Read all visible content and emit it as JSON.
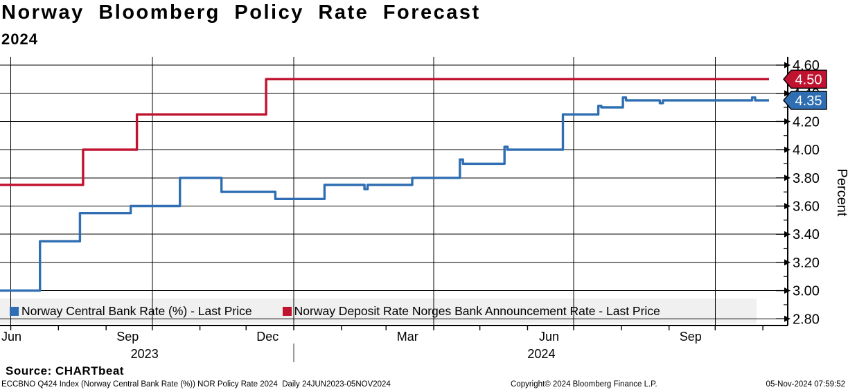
{
  "title": "Norway Bloomberg Policy Rate Forecast",
  "subtitle": "2024",
  "source_label": "Source: CHARTbeat",
  "footer": {
    "left": "ECCBNO Q424 Index (Norway Central Bank Rate (%)) NOR Policy Rate 2024  Daily 24JUN2023-05NOV2024",
    "center": "Copyright© 2024 Bloomberg Finance L.P.",
    "right": "05-Nov-2024 07:59:52"
  },
  "chart_data": {
    "type": "line",
    "line_style": "step-after",
    "title": "Norway Bloomberg Policy Rate Forecast 2024",
    "ylabel": "Percent",
    "ylim": [
      2.76,
      4.66
    ],
    "ytick_values": [
      2.8,
      3.0,
      3.2,
      3.4,
      3.6,
      3.8,
      4.0,
      4.2,
      4.4,
      4.6
    ],
    "ytick_labels": [
      "2.80",
      "3.00",
      "3.20",
      "3.40",
      "3.60",
      "3.80",
      "4.00",
      "4.20",
      "4.40",
      "4.60"
    ],
    "ytick_minor_values": [
      2.9,
      3.1,
      3.3,
      3.5,
      3.7,
      3.9,
      4.1,
      4.3,
      4.5
    ],
    "x_range": [
      "2023-06-24",
      "2024-11-05"
    ],
    "grid": true,
    "grid_vertical_dates": [
      "2023-07-01",
      "2023-10-01",
      "2024-01-01",
      "2024-04-01",
      "2024-07-01",
      "2024-10-01"
    ],
    "x_month_ticks": [
      "2023-07-01",
      "2023-08-01",
      "2023-09-01",
      "2023-10-01",
      "2023-11-01",
      "2023-12-01",
      "2024-01-01",
      "2024-02-01",
      "2024-03-01",
      "2024-04-01",
      "2024-05-01",
      "2024-06-01",
      "2024-07-01",
      "2024-08-01",
      "2024-09-01",
      "2024-10-01",
      "2024-11-01"
    ],
    "x_month_labels": [
      {
        "label": "Jun",
        "date": "2023-06-15"
      },
      {
        "label": "Sep",
        "date": "2023-09-15"
      },
      {
        "label": "Dec",
        "date": "2023-12-15"
      },
      {
        "label": "Mar",
        "date": "2024-03-15"
      },
      {
        "label": "Jun",
        "date": "2024-06-15"
      },
      {
        "label": "Sep",
        "date": "2024-09-15"
      }
    ],
    "x_year_labels": [
      {
        "label": "2023",
        "date": "2023-09-26"
      },
      {
        "label": "2024",
        "date": "2024-06-10"
      }
    ],
    "year_separator_date": "2024-01-01",
    "legend_position": "bottom-band",
    "series": [
      {
        "name": "Norway Central Bank Rate (%) - Last Price",
        "color": "#2f6eb2",
        "last_price": 4.35,
        "last_price_label": "4.35",
        "points": [
          [
            "2023-06-24",
            3.0
          ],
          [
            "2023-07-20",
            3.35
          ],
          [
            "2023-08-15",
            3.55
          ],
          [
            "2023-09-17",
            3.6
          ],
          [
            "2023-10-19",
            3.8
          ],
          [
            "2023-11-15",
            3.7
          ],
          [
            "2023-12-20",
            3.65
          ],
          [
            "2024-01-21",
            3.75
          ],
          [
            "2024-02-16",
            3.72
          ],
          [
            "2024-02-18",
            3.75
          ],
          [
            "2024-03-18",
            3.8
          ],
          [
            "2024-04-18",
            3.93
          ],
          [
            "2024-04-20",
            3.9
          ],
          [
            "2024-05-17",
            4.02
          ],
          [
            "2024-05-19",
            4.0
          ],
          [
            "2024-06-24",
            4.25
          ],
          [
            "2024-07-17",
            4.31
          ],
          [
            "2024-07-19",
            4.3
          ],
          [
            "2024-08-02",
            4.37
          ],
          [
            "2024-08-04",
            4.35
          ],
          [
            "2024-08-26",
            4.33
          ],
          [
            "2024-08-28",
            4.35
          ],
          [
            "2024-10-25",
            4.37
          ],
          [
            "2024-10-27",
            4.35
          ]
        ],
        "end": [
          "2024-11-05",
          4.35
        ]
      },
      {
        "name": "Norway Deposit Rate Norges Bank Announcement Rate - Last Price",
        "color": "#c01330",
        "last_price": 4.5,
        "last_price_label": "4.50",
        "points": [
          [
            "2023-06-24",
            3.75
          ],
          [
            "2023-08-17",
            4.0
          ],
          [
            "2023-09-21",
            4.25
          ],
          [
            "2023-12-14",
            4.5
          ]
        ],
        "end": [
          "2024-11-05",
          4.5
        ]
      }
    ]
  }
}
